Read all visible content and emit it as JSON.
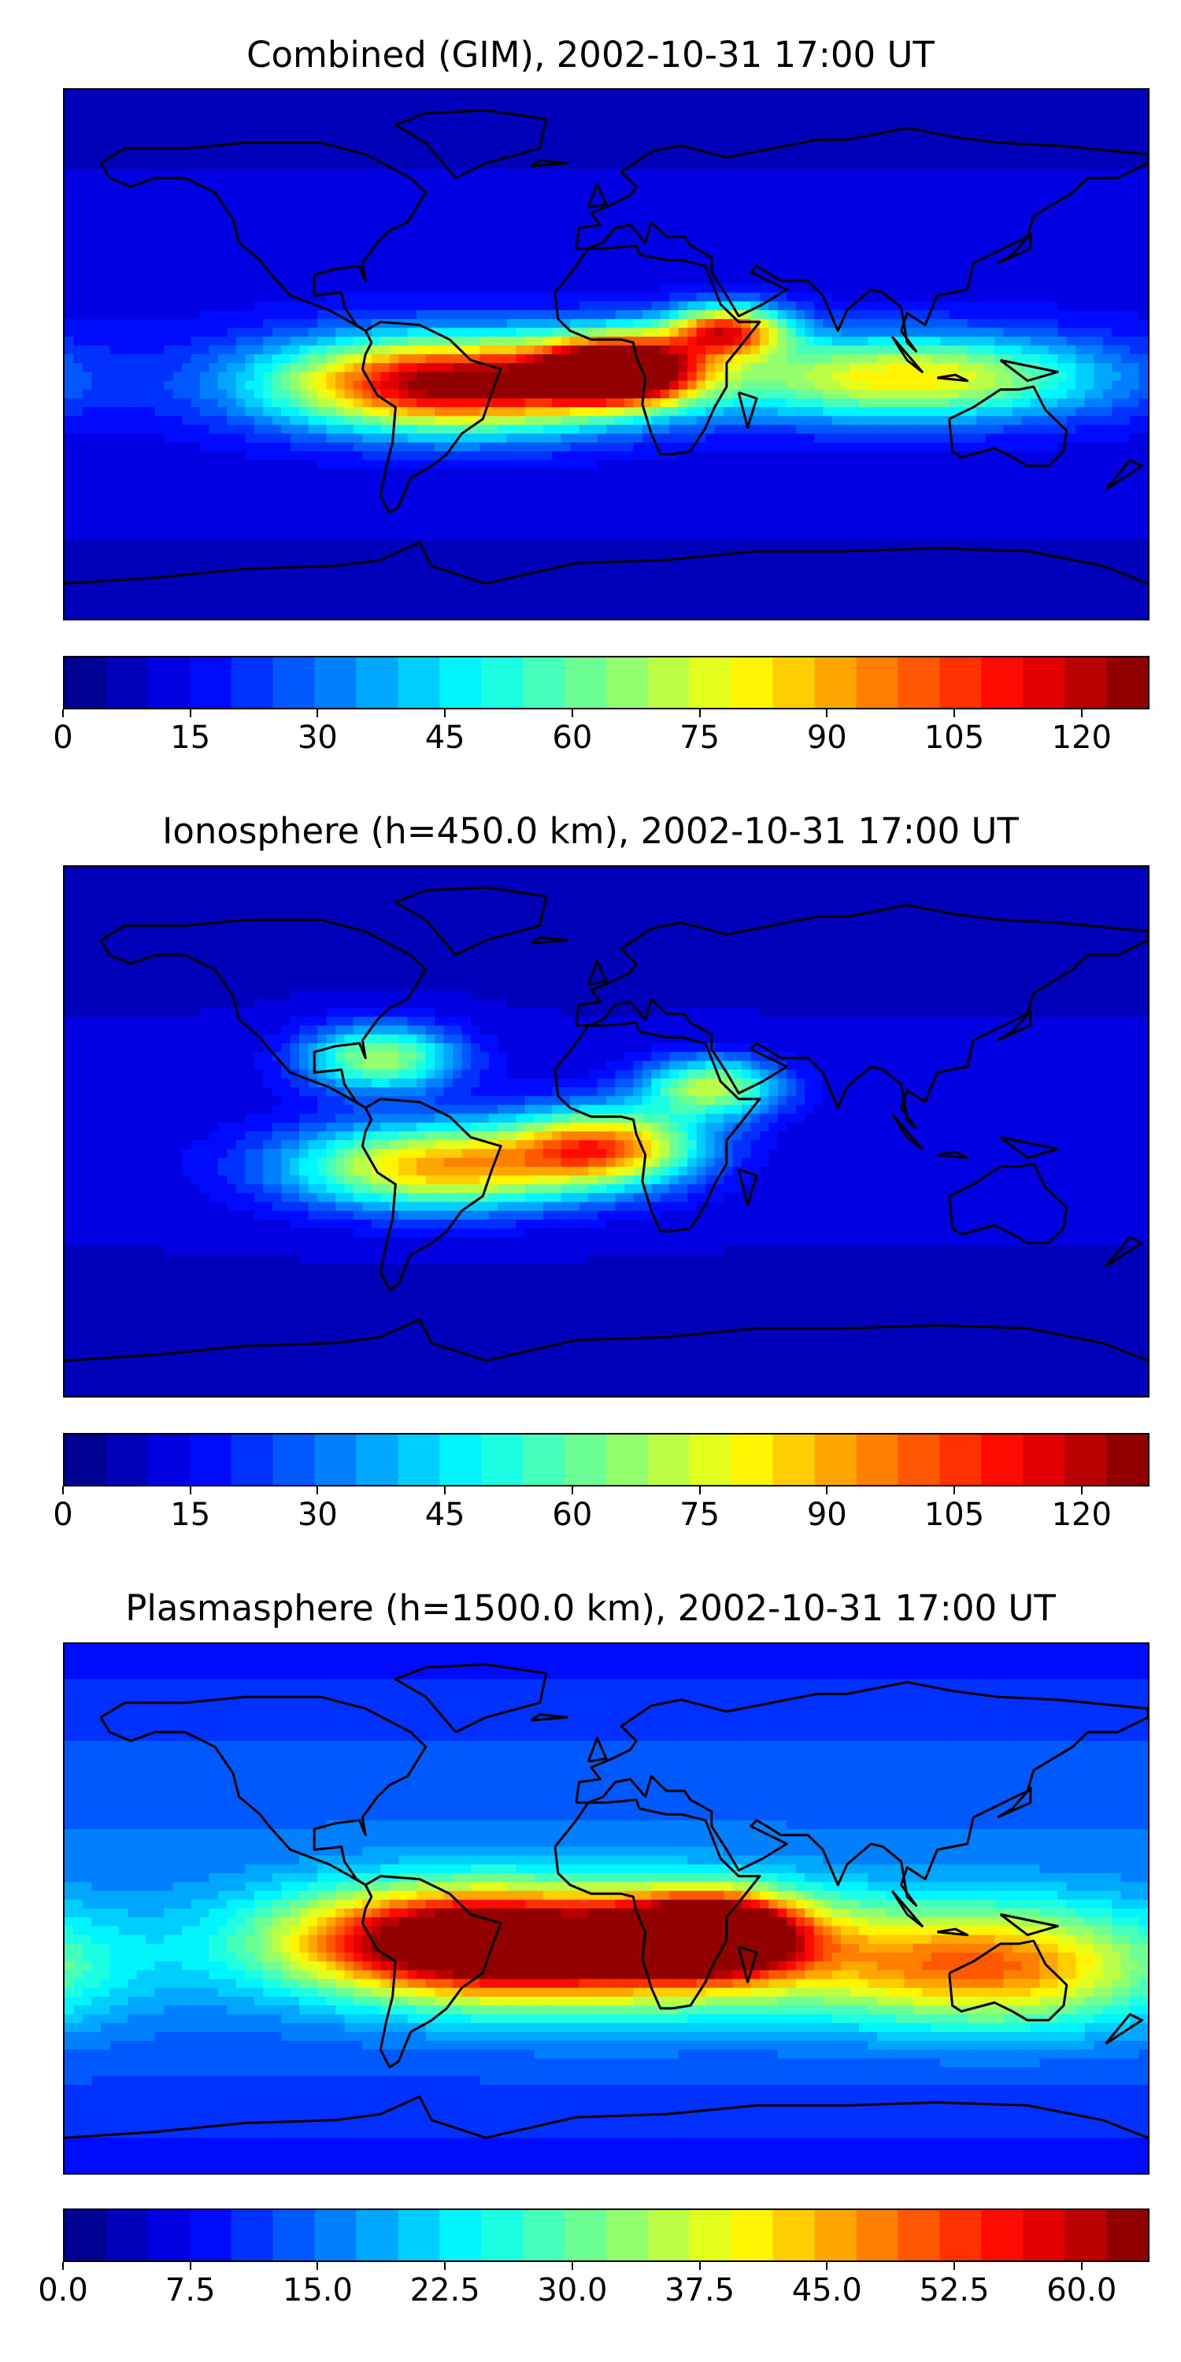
{
  "figure": {
    "panels": [
      {
        "title": "Combined (GIM), 2002-10-31 17:00 UT",
        "colorbar": {
          "min": 0,
          "max": 128,
          "step": 5,
          "ticks": [
            "0",
            "15",
            "30",
            "45",
            "60",
            "75",
            "90",
            "105",
            "120"
          ],
          "tick_values": [
            0,
            15,
            30,
            45,
            60,
            75,
            90,
            105,
            120
          ]
        }
      },
      {
        "title": "Ionosphere  (h=450.0 km), 2002-10-31 17:00 UT",
        "colorbar": {
          "min": 0,
          "max": 128,
          "step": 5,
          "ticks": [
            "0",
            "15",
            "30",
            "45",
            "60",
            "75",
            "90",
            "105",
            "120"
          ],
          "tick_values": [
            0,
            15,
            30,
            45,
            60,
            75,
            90,
            105,
            120
          ]
        }
      },
      {
        "title": "Plasmasphere (h=1500.0 km), 2002-10-31 17:00 UT",
        "colorbar": {
          "min": 0,
          "max": 64,
          "step": 2.5,
          "ticks": [
            "0.0",
            "7.5",
            "15.0",
            "22.5",
            "30.0",
            "37.5",
            "45.0",
            "52.5",
            "60.0"
          ],
          "tick_values": [
            0,
            7.5,
            15,
            22.5,
            30,
            37.5,
            45,
            52.5,
            60
          ]
        }
      }
    ]
  },
  "chart_data": [
    {
      "type": "heatmap",
      "title": "Combined (GIM), 2002-10-31 17:00 UT",
      "colormap": "jet",
      "vmin": 0,
      "vmax": 128,
      "x_range_deg": [
        -180,
        180
      ],
      "y_range_deg": [
        -90,
        90
      ],
      "hotspots": [
        {
          "lon": -50,
          "lat": -10,
          "value": 118,
          "sigma_lon": 42,
          "sigma_lat": 11
        },
        {
          "lon": 5,
          "lat": -5,
          "value": 125,
          "sigma_lon": 18,
          "sigma_lat": 8
        },
        {
          "lon": 40,
          "lat": 8,
          "value": 88,
          "sigma_lon": 14,
          "sigma_lat": 6
        },
        {
          "lon": 100,
          "lat": -8,
          "value": 70,
          "sigma_lon": 45,
          "sigma_lat": 10
        }
      ],
      "background": 12
    },
    {
      "type": "heatmap",
      "title": "Ionosphere  (h=450.0 km), 2002-10-31 17:00 UT",
      "colormap": "jet",
      "vmin": 0,
      "vmax": 128,
      "x_range_deg": [
        -180,
        180
      ],
      "y_range_deg": [
        -90,
        90
      ],
      "hotspots": [
        {
          "lon": -55,
          "lat": -12,
          "value": 80,
          "sigma_lon": 35,
          "sigma_lat": 10
        },
        {
          "lon": 0,
          "lat": -5,
          "value": 78,
          "sigma_lon": 22,
          "sigma_lat": 9
        },
        {
          "lon": -75,
          "lat": 25,
          "value": 58,
          "sigma_lon": 18,
          "sigma_lat": 8
        },
        {
          "lon": 35,
          "lat": 15,
          "value": 60,
          "sigma_lon": 16,
          "sigma_lat": 7
        }
      ],
      "background": 10
    },
    {
      "type": "heatmap",
      "title": "Plasmasphere (h=1500.0 km), 2002-10-31 17:00 UT",
      "colormap": "jet",
      "vmin": 0,
      "vmax": 64,
      "x_range_deg": [
        -180,
        180
      ],
      "y_range_deg": [
        -90,
        90
      ],
      "hotspots": [
        {
          "lon": 35,
          "lat": -8,
          "value": 55,
          "sigma_lon": 20,
          "sigma_lat": 9
        },
        {
          "lon": -50,
          "lat": -10,
          "value": 40,
          "sigma_lon": 40,
          "sigma_lat": 12
        },
        {
          "lon": 0,
          "lat": -15,
          "value": 38,
          "sigma_lon": 60,
          "sigma_lat": 14
        },
        {
          "lon": 130,
          "lat": -20,
          "value": 32,
          "sigma_lon": 40,
          "sigma_lat": 14
        }
      ],
      "background": 14
    }
  ]
}
